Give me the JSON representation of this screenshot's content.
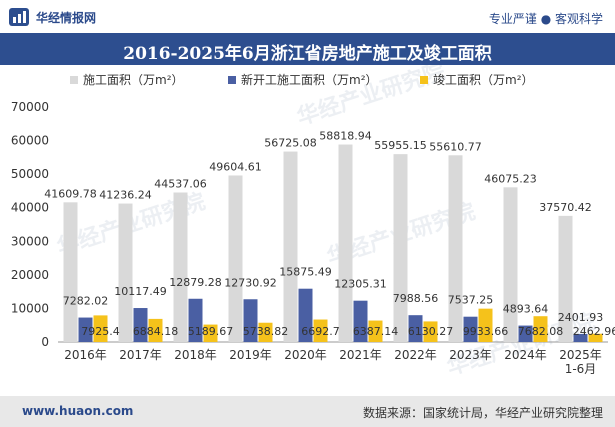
{
  "header": {
    "brand": "华经情报网",
    "tagline": "专业严谨 ● 客观科学"
  },
  "footer": {
    "url": "www.huaon.com",
    "source": "数据来源：国家统计局，华经产业研究院整理"
  },
  "watermark": "华经产业研究院",
  "chart_data": {
    "type": "bar",
    "title": "2016-2025年6月浙江省房地产施工及竣工面积",
    "categories": [
      "2016年",
      "2017年",
      "2018年",
      "2019年",
      "2020年",
      "2021年",
      "2022年",
      "2023年",
      "2024年",
      "2025年\n1-6月"
    ],
    "series": [
      {
        "name": "施工面积（万m²）",
        "color": "#d9d9d9",
        "values": [
          41609.78,
          41236.24,
          44537.06,
          49604.61,
          56725.08,
          58818.94,
          55955.15,
          55610.77,
          46075.23,
          37570.42
        ]
      },
      {
        "name": "新开工施工面积（万m²）",
        "color": "#4a5fa3",
        "values": [
          7282.02,
          10117.49,
          12879.28,
          12730.92,
          15875.49,
          12305.31,
          7988.56,
          7537.25,
          4893.64,
          2401.93
        ]
      },
      {
        "name": "竣工面积（万m²）",
        "color": "#f5c21b",
        "values": [
          7925.4,
          6884.18,
          5189.67,
          5738.82,
          6692.7,
          6387.14,
          6130.27,
          9933.66,
          7682.08,
          2462.96
        ]
      }
    ],
    "data_labels": [
      [
        "41609.78",
        "41236.24",
        "44537.06",
        "49604.61",
        "56725.08",
        "58818.94",
        "55955.15",
        "55610.77",
        "46075.23",
        "37570.42"
      ],
      [
        "7282.02",
        "10117.49",
        "12879.28",
        "12730.92",
        "15875.49",
        "12305.31",
        "7988.56",
        "7537.25",
        "4893.64",
        "2401.93"
      ],
      [
        "7925.4",
        "6884.18",
        "5189.67",
        "5738.82",
        "6692.7",
        "6387.14",
        "6130.27",
        "9933.66",
        "7682.08",
        "2462.96"
      ]
    ],
    "ylim": [
      0,
      70000
    ],
    "yticks": [
      "0",
      "10000",
      "20000",
      "30000",
      "40000",
      "50000",
      "60000",
      "70000"
    ],
    "legend_position": "top",
    "grid": false
  }
}
